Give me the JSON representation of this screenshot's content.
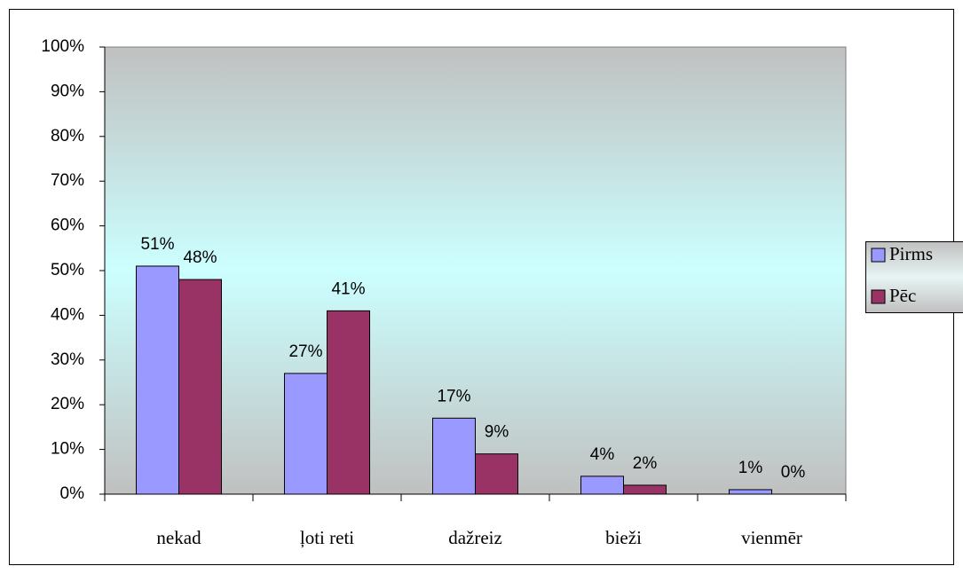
{
  "chart_data": {
    "type": "bar",
    "categories": [
      "nekad",
      "ļoti reti",
      "dažreiz",
      "bieži",
      "vienmēr"
    ],
    "series": [
      {
        "name": "Pirms",
        "color": "#9999ff",
        "values": [
          51,
          27,
          17,
          4,
          1
        ],
        "value_labels": [
          "51%",
          "27%",
          "17%",
          "4%",
          "1%"
        ]
      },
      {
        "name": "Pēc",
        "color": "#993366",
        "values": [
          48,
          41,
          9,
          2,
          0
        ],
        "value_labels": [
          "48%",
          "41%",
          "9%",
          "2%",
          "0%"
        ]
      }
    ],
    "ylim": [
      0,
      100
    ],
    "yticks": [
      {
        "value": 0,
        "label": "0%"
      },
      {
        "value": 10,
        "label": "10%"
      },
      {
        "value": 20,
        "label": "20%"
      },
      {
        "value": 30,
        "label": "30%"
      },
      {
        "value": 40,
        "label": "40%"
      },
      {
        "value": 50,
        "label": "50%"
      },
      {
        "value": 60,
        "label": "60%"
      },
      {
        "value": 70,
        "label": "70%"
      },
      {
        "value": 80,
        "label": "80%"
      },
      {
        "value": 90,
        "label": "90%"
      },
      {
        "value": 100,
        "label": "100%"
      }
    ],
    "grid": false,
    "legend": "right"
  }
}
